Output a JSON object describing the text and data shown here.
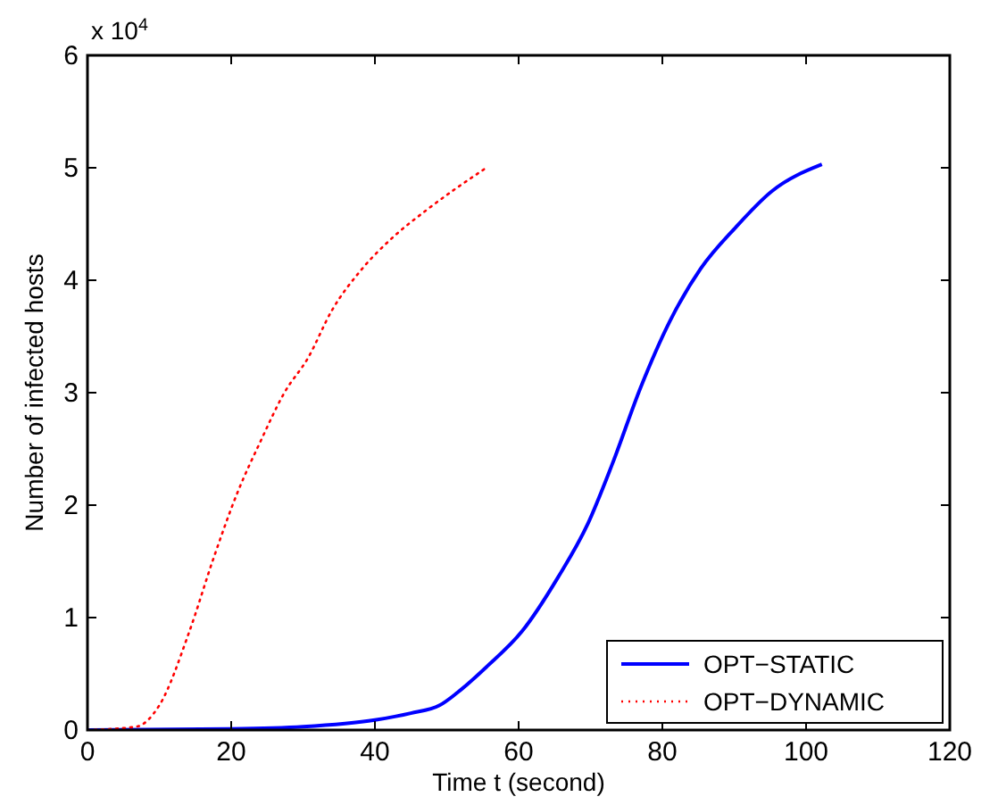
{
  "chart_data": {
    "type": "line",
    "xlabel": "Time t (second)",
    "ylabel": "Number of infected hosts",
    "annotations": [
      "x 10$^{4}$"
    ],
    "xlim": [
      0,
      120
    ],
    "xticks": [
      0,
      20,
      40,
      60,
      80,
      100,
      120
    ],
    "ylim": [
      0,
      6
    ],
    "yticks": [
      0,
      1,
      2,
      3,
      4,
      5,
      6
    ],
    "grid": false,
    "legend": "bottom right",
    "series": [
      {
        "name": "OPT−STATIC",
        "color": "#0000ff",
        "line_style": "solid",
        "x": [
          0,
          20,
          30,
          40,
          45,
          49,
          52,
          55.5,
          60.5,
          65.5,
          69.6,
          73,
          77,
          81,
          85.3,
          90.2,
          95.2,
          102.2
        ],
        "values": [
          0,
          0.01,
          0.03,
          0.09,
          0.15,
          0.22,
          0.36,
          0.56,
          0.88,
          1.36,
          1.83,
          2.36,
          3.05,
          3.63,
          4.1,
          4.47,
          4.79,
          5.03
        ]
      },
      {
        "name": "OPT−DYNAMIC",
        "color": "#ff0000",
        "line_style": "dotted",
        "x": [
          0,
          6.8,
          10,
          14.2,
          17.5,
          20.8,
          24.1,
          27.4,
          30.7,
          34,
          38.2,
          42.3,
          47.3,
          55.5
        ],
        "values": [
          0,
          0.03,
          0.22,
          0.88,
          1.52,
          2.1,
          2.57,
          3.0,
          3.31,
          3.73,
          4.1,
          4.37,
          4.63,
          5.0
        ]
      }
    ]
  }
}
